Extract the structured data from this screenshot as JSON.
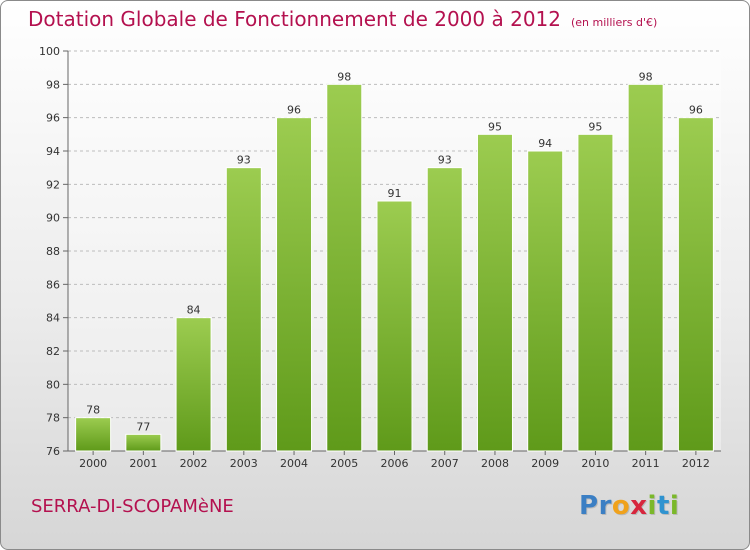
{
  "header": {
    "title": "Dotation Globale de Fonctionnement de 2000 à 2012",
    "subtitle": "(en milliers d'€)"
  },
  "footer": {
    "place": "SERRA-DI-SCOPAMèNE",
    "logo": "Proxiti"
  },
  "colors": {
    "title": "#b4114f",
    "bar_light": "#9ccc50",
    "bar_dark": "#5f9a1a"
  },
  "chart_data": {
    "type": "bar",
    "title": "Dotation Globale de Fonctionnement de 2000 à 2012",
    "subtitle": "(en milliers d'€)",
    "categories": [
      "2000",
      "2001",
      "2002",
      "2003",
      "2004",
      "2005",
      "2006",
      "2007",
      "2008",
      "2009",
      "2010",
      "2011",
      "2012"
    ],
    "values": [
      78,
      77,
      84,
      93,
      96,
      98,
      91,
      93,
      95,
      94,
      95,
      98,
      96
    ],
    "ylim": [
      76,
      100
    ],
    "yticks": [
      76,
      78,
      80,
      82,
      84,
      86,
      88,
      90,
      92,
      94,
      96,
      98,
      100
    ],
    "grid": "horizontal dashed",
    "data_labels": true
  }
}
